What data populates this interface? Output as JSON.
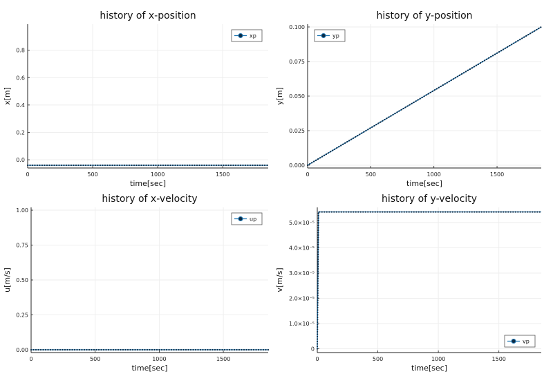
{
  "chart_data": [
    {
      "type": "line",
      "title": "history of x-position",
      "xlabel": "time[sec]",
      "ylabel": "x[m]",
      "xlim": [
        0,
        1850
      ],
      "ylim": [
        -0.06,
        0.99
      ],
      "xticks": [
        0,
        500,
        1000,
        1500
      ],
      "xtick_labels": [
        "0",
        "500",
        "1000",
        "1500"
      ],
      "yticks": [
        0.0,
        0.2,
        0.4,
        0.6,
        0.8
      ],
      "ytick_labels": [
        "0.0",
        "0.2",
        "0.4",
        "0.6",
        "0.8"
      ],
      "grid": true,
      "legend_position": "top-right",
      "series": [
        {
          "name": "xp",
          "color": "#1f77b4",
          "markers": true,
          "x": [
            0,
            1850
          ],
          "y": [
            -0.04,
            -0.04
          ]
        }
      ]
    },
    {
      "type": "line",
      "title": "history of y-position",
      "xlabel": "time[sec]",
      "ylabel": "y[m]",
      "xlim": [
        0,
        1850
      ],
      "ylim": [
        -0.002,
        0.102
      ],
      "xticks": [
        0,
        500,
        1000,
        1500
      ],
      "xtick_labels": [
        "0",
        "500",
        "1000",
        "1500"
      ],
      "yticks": [
        0.0,
        0.025,
        0.05,
        0.075,
        0.1
      ],
      "ytick_labels": [
        "0.000",
        "0.025",
        "0.050",
        "0.075",
        "0.100"
      ],
      "grid": true,
      "legend_position": "top-left",
      "series": [
        {
          "name": "yp",
          "color": "#1f77b4",
          "markers": true,
          "x": [
            0,
            1850
          ],
          "y": [
            0.0,
            0.1
          ]
        }
      ]
    },
    {
      "type": "line",
      "title": "history of x-velocity",
      "xlabel": "time[sec]",
      "ylabel": "u[m/s]",
      "xlim": [
        0,
        1850
      ],
      "ylim": [
        -0.02,
        1.02
      ],
      "xticks": [
        0,
        500,
        1000,
        1500
      ],
      "xtick_labels": [
        "0",
        "500",
        "1000",
        "1500"
      ],
      "yticks": [
        0.0,
        0.25,
        0.5,
        0.75,
        1.0
      ],
      "ytick_labels": [
        "0.00",
        "0.25",
        "0.50",
        "0.75",
        "1.00"
      ],
      "grid": true,
      "legend_position": "top-right",
      "series": [
        {
          "name": "up",
          "color": "#1f77b4",
          "markers": true,
          "x": [
            0,
            1850
          ],
          "y": [
            0.0,
            0.0
          ]
        }
      ]
    },
    {
      "type": "line",
      "title": "history of y-velocity",
      "xlabel": "time[sec]",
      "ylabel": "v[m/s]",
      "xlim": [
        0,
        1850
      ],
      "ylim": [
        -1.5e-06,
        5.6e-05
      ],
      "xticks": [
        0,
        500,
        1000,
        1500
      ],
      "xtick_labels": [
        "0",
        "500",
        "1000",
        "1500"
      ],
      "yticks": [
        0,
        1e-05,
        2e-05,
        3e-05,
        4e-05,
        5e-05
      ],
      "ytick_labels": [
        "0",
        "1.0×10⁻⁵",
        "2.0×10⁻⁵",
        "3.0×10⁻⁵",
        "4.0×10⁻⁵",
        "5.0×10⁻⁵"
      ],
      "grid": true,
      "legend_position": "bottom-right",
      "series": [
        {
          "name": "vp",
          "color": "#1f77b4",
          "markers": true,
          "x": [
            0,
            10,
            1850
          ],
          "y": [
            0,
            5.42e-05,
            5.42e-05
          ]
        }
      ]
    }
  ]
}
